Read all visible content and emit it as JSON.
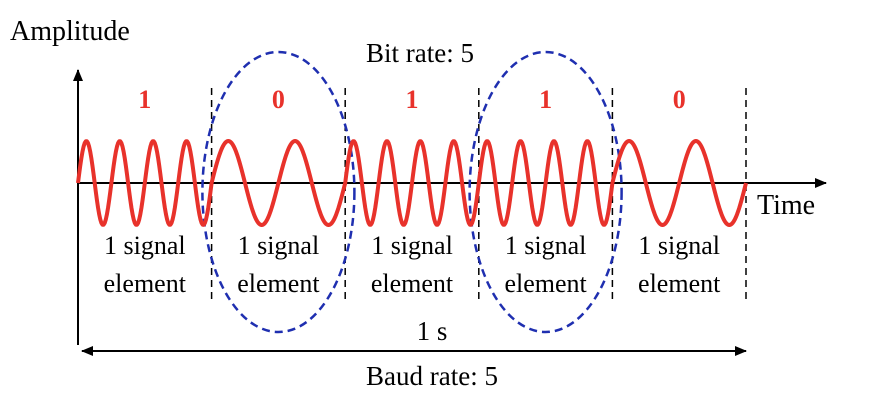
{
  "diagram": {
    "y_axis_label": "Amplitude",
    "x_axis_label": "Time",
    "bit_rate_label": "Bit rate: 5",
    "baud_rate_label": "Baud rate: 5",
    "duration_label": "1 s",
    "bits": [
      "1",
      "0",
      "1",
      "1",
      "0"
    ],
    "element_label_line1": "1 signal",
    "element_label_line2": "element",
    "cycles_per_element": {
      "bit_1": 4,
      "bit_0": 2
    },
    "colors": {
      "signal": "#e8322b",
      "bit_label": "#e8322b",
      "ellipse": "#1f2fb0",
      "axis": "#000000",
      "divider": "#000000"
    }
  }
}
